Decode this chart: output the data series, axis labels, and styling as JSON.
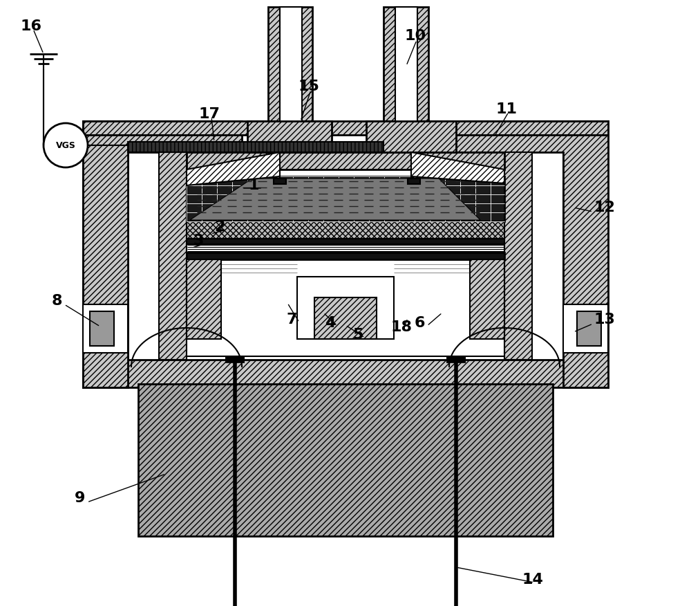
{
  "figsize": [
    10.0,
    8.76
  ],
  "dpi": 100,
  "bg": "#ffffff"
}
